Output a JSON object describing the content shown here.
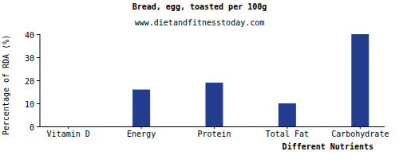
{
  "chart_data": {
    "type": "bar",
    "title": "Bread, egg, toasted per 100g",
    "subtitle": "www.dietandfitnesstoday.com",
    "x_label": "Different Nutrients",
    "y_label": "Percentage of RDA (%)",
    "categories": [
      "Vitamin D",
      "Energy",
      "Protein",
      "Total Fat",
      "Carbohydrate"
    ],
    "values": [
      0,
      16,
      19,
      10,
      40
    ],
    "color": "#233d8e",
    "ylim": [
      0,
      40
    ],
    "yticks": [
      0,
      10,
      20,
      30,
      40
    ],
    "grid": false
  }
}
